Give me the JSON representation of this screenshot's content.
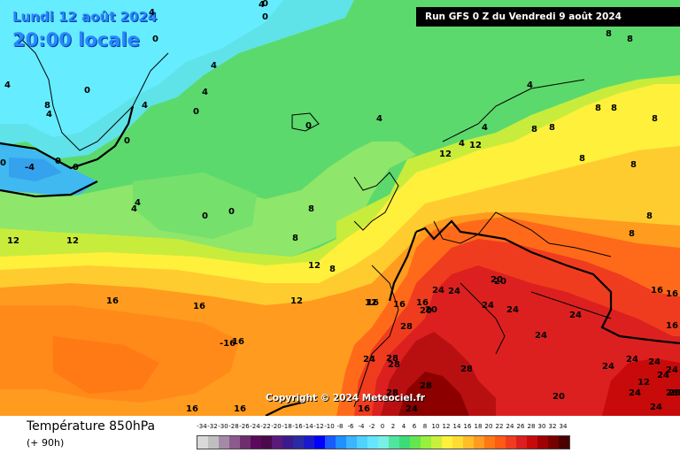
{
  "header": {
    "date_line1": "Lundi 12 août 2024",
    "date_line2": "20:00 locale",
    "run_banner": "Run GFS 0 Z du Vendredi 9 août 2024",
    "copyright": "Copyright © 2024 Meteociel.fr"
  },
  "footer": {
    "title": "Température 850hPa",
    "subtitle": "(+ 90h)"
  },
  "legend": {
    "ticks": [
      "-34",
      "-32",
      "-30",
      "-28",
      "-26",
      "-24",
      "-22",
      "-20",
      "-18",
      "-16",
      "-14",
      "-12",
      "-10",
      "-8",
      "-6",
      "-4",
      "-2",
      "0",
      "2",
      "4",
      "6",
      "8",
      "10",
      "12",
      "14",
      "16",
      "18",
      "20",
      "22",
      "24",
      "26",
      "28",
      "30",
      "32",
      "34"
    ],
    "colors": [
      "#d9d9d9",
      "#bfbfbf",
      "#a58aa5",
      "#8c5a8c",
      "#6e2e6e",
      "#5a0a5a",
      "#4b0a4b",
      "#5a1a7a",
      "#3c1a8c",
      "#2a2aa5",
      "#1a1acc",
      "#0000ff",
      "#1a5aff",
      "#1e90ff",
      "#3cb4ff",
      "#50d2ff",
      "#64e6ff",
      "#78f0e6",
      "#50e6a0",
      "#3cdc78",
      "#64e650",
      "#96f03c",
      "#c8f03c",
      "#fff03c",
      "#ffdc32",
      "#ffbe28",
      "#ff9b1e",
      "#ff7814",
      "#ff5a14",
      "#f03c1e",
      "#dc1e1e",
      "#c80a0a",
      "#a00000",
      "#780000",
      "#4b0000"
    ]
  },
  "map_labels": [
    {
      "text": "0"
    },
    {
      "text": "0"
    },
    {
      "text": "4"
    },
    {
      "text": "4"
    },
    {
      "text": "0"
    },
    {
      "text": "4"
    },
    {
      "text": "0"
    },
    {
      "text": "4"
    },
    {
      "text": "4"
    },
    {
      "text": "0"
    },
    {
      "text": "0"
    },
    {
      "text": "4"
    },
    {
      "text": "0"
    },
    {
      "text": "-4"
    },
    {
      "text": "0"
    },
    {
      "text": "0"
    },
    {
      "text": "0"
    },
    {
      "text": "4"
    },
    {
      "text": "4"
    },
    {
      "text": "0"
    },
    {
      "text": "0"
    },
    {
      "text": "8"
    },
    {
      "text": "4"
    },
    {
      "text": "4"
    },
    {
      "text": "12"
    },
    {
      "text": "12"
    },
    {
      "text": "12"
    },
    {
      "text": "8"
    },
    {
      "text": "8"
    },
    {
      "text": "12"
    },
    {
      "text": "8"
    },
    {
      "text": "12"
    },
    {
      "text": "16"
    },
    {
      "text": "16"
    },
    {
      "text": "16"
    },
    {
      "text": "-16"
    },
    {
      "text": "16"
    },
    {
      "text": "16"
    },
    {
      "text": "16"
    },
    {
      "text": "16"
    },
    {
      "text": "12"
    },
    {
      "text": "16"
    },
    {
      "text": "20"
    },
    {
      "text": "24"
    },
    {
      "text": "24"
    },
    {
      "text": "20"
    },
    {
      "text": "20"
    },
    {
      "text": "24"
    },
    {
      "text": "24"
    },
    {
      "text": "24"
    },
    {
      "text": "24"
    },
    {
      "text": "28"
    },
    {
      "text": "24"
    },
    {
      "text": "28"
    },
    {
      "text": "28"
    },
    {
      "text": "28"
    },
    {
      "text": "28"
    },
    {
      "text": "28"
    },
    {
      "text": "24"
    },
    {
      "text": "24"
    },
    {
      "text": "24"
    },
    {
      "text": "20"
    },
    {
      "text": "24"
    },
    {
      "text": "24"
    },
    {
      "text": "24"
    },
    {
      "text": "24"
    },
    {
      "text": "28"
    },
    {
      "text": "28"
    },
    {
      "text": "24"
    },
    {
      "text": "16"
    },
    {
      "text": "16"
    },
    {
      "text": "16"
    },
    {
      "text": "8"
    },
    {
      "text": "8"
    },
    {
      "text": "8"
    },
    {
      "text": "8"
    },
    {
      "text": "8"
    },
    {
      "text": "8"
    },
    {
      "text": "8"
    },
    {
      "text": "8"
    },
    {
      "text": "8"
    },
    {
      "text": "4"
    },
    {
      "text": "4"
    },
    {
      "text": "4"
    },
    {
      "text": "8"
    },
    {
      "text": "8"
    },
    {
      "text": "12"
    },
    {
      "text": "16"
    },
    {
      "text": "12"
    },
    {
      "text": "20"
    }
  ]
}
